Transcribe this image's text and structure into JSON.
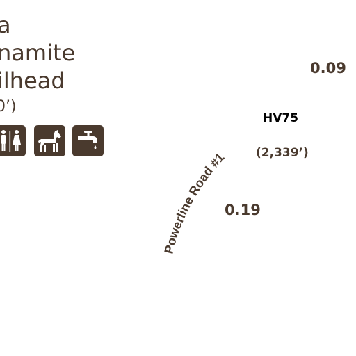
{
  "trailhead": {
    "name_lines": [
      "a",
      "namite",
      "ilhead"
    ],
    "elevation": "0’)"
  },
  "amenities": [
    {
      "icon": "restroom-icon"
    },
    {
      "icon": "horse-icon"
    },
    {
      "icon": "water-faucet-icon"
    }
  ],
  "distances": {
    "upper_right": "0.09",
    "road_segment": "0.19"
  },
  "peak": {
    "code": "HV75",
    "elevation": "(2,339’)"
  },
  "road": {
    "label": "Powerline Road #1"
  },
  "colors": {
    "label_brown": "#4a3a2e",
    "icon_bg": "#4a3a2e",
    "icon_fg": "#ffffff"
  }
}
